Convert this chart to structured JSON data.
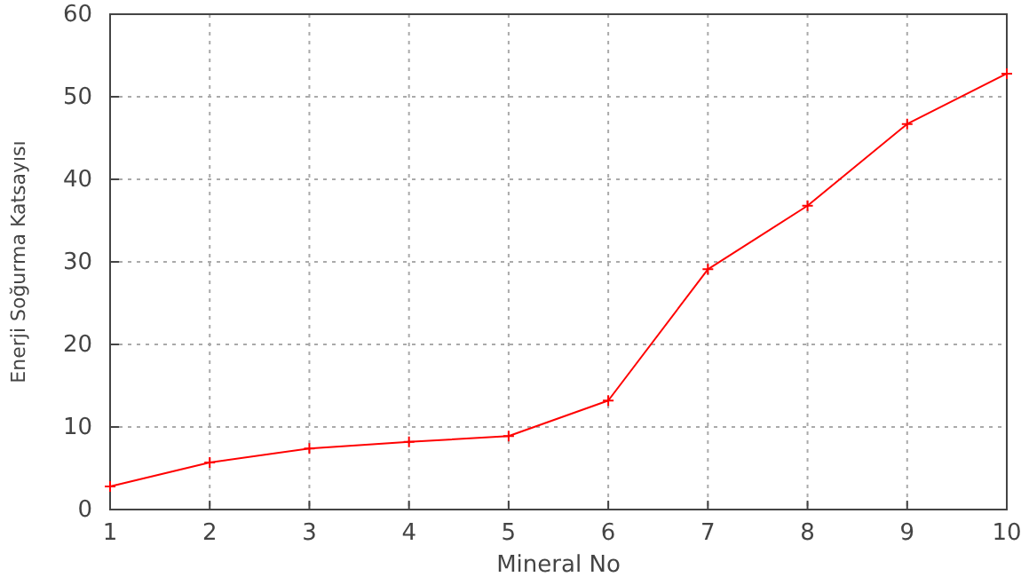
{
  "chart_data": {
    "type": "line",
    "xlabel": "Mineral No",
    "ylabel": "Enerji Soğurma Katsayısı",
    "x": [
      1,
      2,
      3,
      4,
      5,
      6,
      7,
      8,
      9,
      10
    ],
    "series": [
      {
        "color": "#ff0000",
        "values": [
          2.8,
          5.7,
          7.4,
          8.2,
          8.9,
          13.2,
          29.1,
          36.8,
          46.7,
          52.8
        ]
      }
    ],
    "xlim": [
      1,
      10
    ],
    "xticks": [
      1,
      2,
      3,
      4,
      5,
      6,
      7,
      8,
      9,
      10
    ],
    "ylim": [
      0,
      60
    ],
    "yticks": [
      0,
      10,
      20,
      30,
      40,
      50,
      60
    ],
    "grid": true,
    "marker": "cross",
    "line_style": "solid"
  }
}
